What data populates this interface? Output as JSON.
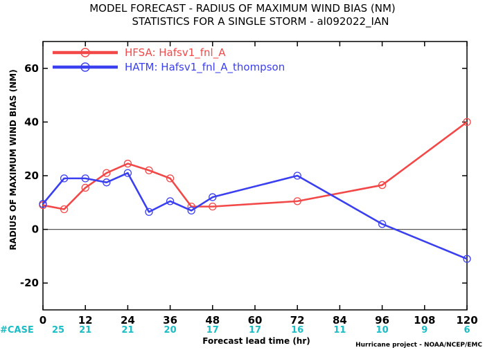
{
  "chart_data": {
    "type": "line",
    "title": "MODEL FORECAST - RADIUS OF MAXIMUM WIND BIAS (NM)",
    "subtitle": "STATISTICS FOR A SINGLE STORM - al092022_IAN",
    "xlabel": "Forecast lead time (hr)",
    "ylabel": "RADIUS OF MAXIMUM WIND BIAS (NM)",
    "xlim": [
      0,
      120
    ],
    "ylim": [
      -30,
      70
    ],
    "x_ticks": [
      0,
      12,
      24,
      36,
      48,
      60,
      72,
      84,
      96,
      108,
      120
    ],
    "y_ticks": [
      -20,
      0,
      20,
      40,
      60
    ],
    "legend_position": "top-left",
    "zero_line": true,
    "series": [
      {
        "name": "HFSA: Hafsv1_fnl_A",
        "color": "#f24848",
        "marker": "circle",
        "x": [
          0,
          6,
          12,
          18,
          24,
          30,
          36,
          42,
          48,
          72,
          96,
          120
        ],
        "y": [
          9,
          7.5,
          15.5,
          21,
          24.5,
          22,
          19,
          8.5,
          8.5,
          10.5,
          16.5,
          40
        ]
      },
      {
        "name": "HATM: Hafsv1_fnl_A_thompson",
        "color": "#3a3ff0",
        "marker": "circle",
        "x": [
          0,
          6,
          12,
          18,
          24,
          30,
          36,
          42,
          48,
          72,
          96,
          120
        ],
        "y": [
          9.5,
          19,
          19,
          17.5,
          21,
          6.5,
          10.5,
          7,
          12,
          20,
          2,
          -11
        ]
      }
    ],
    "case_counts": {
      "label": "#CASE",
      "x": [
        0,
        12,
        24,
        36,
        48,
        60,
        72,
        84,
        96,
        108,
        120
      ],
      "values": [
        "25",
        "21",
        "21",
        "20",
        "17",
        "17",
        "16",
        "11",
        "10",
        "9",
        "6"
      ]
    },
    "credit": "Hurricane project - NOAA/NCEP/EMC"
  }
}
